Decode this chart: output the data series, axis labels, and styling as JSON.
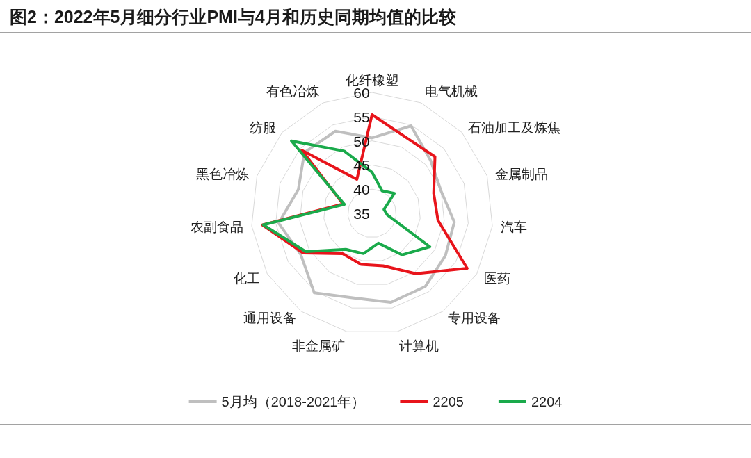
{
  "chart_data": {
    "type": "radar",
    "title": "图2：2022年5月细分行业PMI与4月和历史同期均值的比较",
    "categories": [
      "化纤橡塑",
      "电气机械",
      "石油加工及炼焦",
      "金属制品",
      "汽车",
      "医药",
      "专用设备",
      "计算机",
      "非金属矿",
      "通用设备",
      "化工",
      "农副食品",
      "黑色冶炼",
      "纺服",
      "有色冶炼"
    ],
    "series": [
      {
        "name": "5月均（2018-2021年）",
        "color": "#bfbfbf",
        "values": [
          50.6,
          54.8,
          51.3,
          50.0,
          52.1,
          52.5,
          53.7,
          53.8,
          52.9,
          55.3,
          52.0,
          54.4,
          51.0,
          53.8,
          53.6
        ]
      },
      {
        "name": "2205",
        "color": "#e8141b",
        "values": [
          55.4,
          52.2,
          52.5,
          48.4,
          48.7,
          57.7,
          50.4,
          46.1,
          45.8,
          45.3,
          51.4,
          57.8,
          41.3,
          54.5,
          42.7
        ]
      },
      {
        "name": "2204",
        "color": "#1aaa4b",
        "values": [
          43.5,
          40.1,
          41.2,
          37.6,
          38.2,
          48.8,
          45.6,
          41.3,
          43.5,
          44.2,
          50.8,
          57.6,
          41.0,
          57.4,
          49.1
        ]
      }
    ],
    "ylim": [
      35,
      60
    ],
    "yticks": [
      35,
      40,
      45,
      50,
      55,
      60
    ],
    "grid": true,
    "legend": "bottom"
  }
}
